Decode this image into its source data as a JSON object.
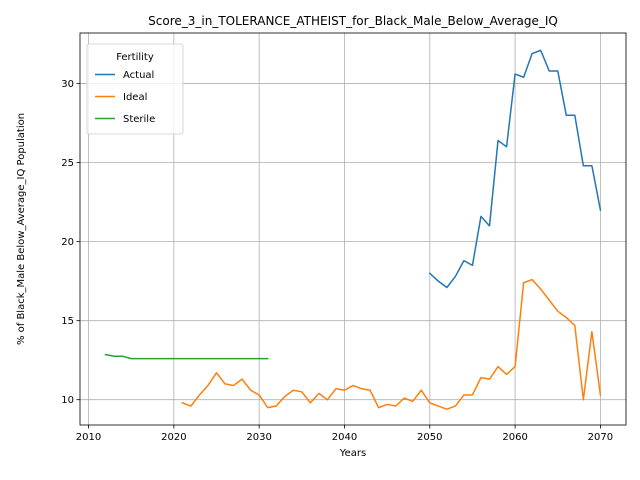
{
  "chart_data": {
    "type": "line",
    "title": "Score_3_in_TOLERANCE_ATHEIST_for_Black_Male_Below_Average_IQ",
    "xlabel": "Years",
    "ylabel": "% of Black_Male Below_Average_IQ Population",
    "xlim": [
      2009,
      2073
    ],
    "ylim": [
      8.4,
      33.2
    ],
    "xticks": [
      2010,
      2020,
      2030,
      2040,
      2050,
      2060,
      2070
    ],
    "yticks": [
      10,
      15,
      20,
      25,
      30
    ],
    "grid": true,
    "legend": {
      "title": "Fertility",
      "placement": "upper-left"
    },
    "series": [
      {
        "name": "Actual",
        "color": "#1f77b4",
        "x": [
          2050,
          2051,
          2052,
          2053,
          2054,
          2055,
          2056,
          2057,
          2058,
          2059,
          2060,
          2061,
          2062,
          2063,
          2064,
          2065,
          2066,
          2067,
          2068,
          2069,
          2070
        ],
        "y": [
          18.0,
          17.5,
          17.1,
          17.8,
          18.8,
          18.5,
          21.6,
          21.0,
          26.4,
          26.0,
          30.6,
          30.4,
          31.9,
          32.1,
          30.8,
          30.8,
          28.0,
          28.0,
          24.8,
          24.8,
          22.0
        ]
      },
      {
        "name": "Ideal",
        "color": "#ff7f0e",
        "x": [
          2021,
          2022,
          2023,
          2024,
          2025,
          2026,
          2027,
          2028,
          2029,
          2030,
          2031,
          2032,
          2033,
          2034,
          2035,
          2036,
          2037,
          2038,
          2039,
          2040,
          2041,
          2042,
          2043,
          2044,
          2045,
          2046,
          2047,
          2048,
          2049,
          2050,
          2051,
          2052,
          2053,
          2054,
          2055,
          2056,
          2057,
          2058,
          2059,
          2060,
          2061,
          2062,
          2063,
          2064,
          2065,
          2066,
          2067,
          2068,
          2069,
          2070
        ],
        "y": [
          9.8,
          9.6,
          10.3,
          10.9,
          11.7,
          11.0,
          10.9,
          11.3,
          10.6,
          10.3,
          9.5,
          9.6,
          10.2,
          10.6,
          10.5,
          9.8,
          10.4,
          10.0,
          10.7,
          10.6,
          10.9,
          10.7,
          10.6,
          9.5,
          9.7,
          9.6,
          10.1,
          9.9,
          10.6,
          9.8,
          9.6,
          9.4,
          9.6,
          10.3,
          10.3,
          11.4,
          11.3,
          12.1,
          11.6,
          12.1,
          17.4,
          17.6,
          17.0,
          16.3,
          15.6,
          15.2,
          14.7,
          10.0,
          14.3,
          10.3
        ]
      },
      {
        "name": "Sterile",
        "color": "#2ca02c",
        "x": [
          2012,
          2013,
          2014,
          2015,
          2016,
          2017,
          2018,
          2019,
          2020,
          2021,
          2022,
          2023,
          2024,
          2025,
          2026,
          2027,
          2028,
          2029,
          2030,
          2031
        ],
        "y": [
          12.85,
          12.75,
          12.75,
          12.6,
          12.6,
          12.6,
          12.6,
          12.6,
          12.6,
          12.6,
          12.6,
          12.6,
          12.6,
          12.6,
          12.6,
          12.6,
          12.6,
          12.6,
          12.6,
          12.6
        ]
      }
    ]
  }
}
